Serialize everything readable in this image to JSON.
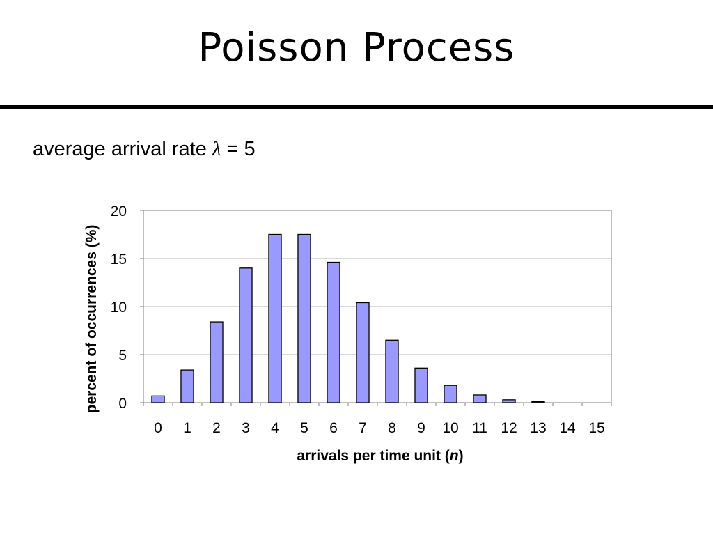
{
  "slide": {
    "title": "Poisson Process",
    "subtitle_prefix": "average arrival rate ",
    "subtitle_symbol": "λ",
    "subtitle_suffix": " = 5"
  },
  "chart_data": {
    "type": "bar",
    "categories": [
      "0",
      "1",
      "2",
      "3",
      "4",
      "5",
      "6",
      "7",
      "8",
      "9",
      "10",
      "11",
      "12",
      "13",
      "14",
      "15"
    ],
    "values": [
      0.7,
      3.4,
      8.4,
      14.0,
      17.5,
      17.5,
      14.6,
      10.4,
      6.5,
      3.6,
      1.8,
      0.8,
      0.3,
      0.1,
      0,
      0
    ],
    "xlabel_prefix": "arrivals per time unit (",
    "xlabel_var": "n",
    "xlabel_suffix": ")",
    "ylabel": "percent of occurrences (%)",
    "ylim": [
      0,
      20
    ],
    "yticks": [
      0,
      5,
      10,
      15,
      20
    ],
    "grid": true,
    "legend": "none",
    "bar_color": "#9999ff",
    "bar_stroke": "#000000"
  }
}
